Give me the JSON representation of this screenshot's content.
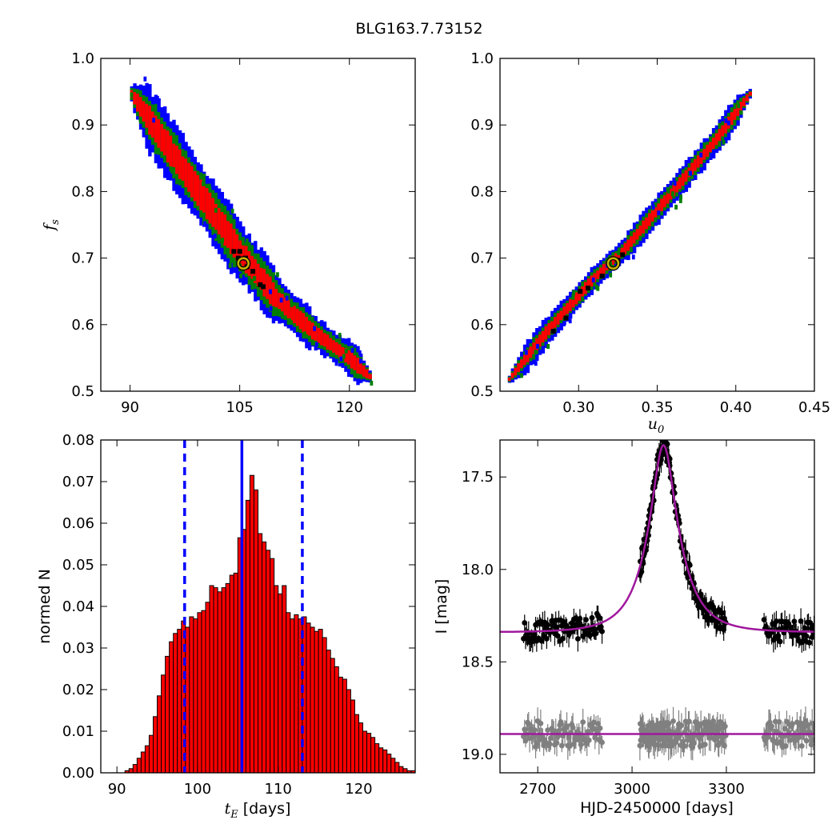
{
  "figure_title": "BLG163.7.73152",
  "chart_data": [
    {
      "type": "heatmap",
      "panel": "top-left",
      "xlim": [
        86,
        129
      ],
      "ylim": [
        0.5,
        1.0
      ],
      "xticks": [
        90,
        105,
        120
      ],
      "yticks": [
        0.5,
        0.6,
        0.7,
        0.8,
        0.9,
        1.0
      ],
      "xlabel": "",
      "ylabel": "f_s",
      "ridge": [
        [
          90,
          0.95
        ],
        [
          95,
          0.87
        ],
        [
          100,
          0.79
        ],
        [
          105,
          0.71
        ],
        [
          110,
          0.64
        ],
        [
          115,
          0.59
        ],
        [
          120,
          0.55
        ],
        [
          123,
          0.52
        ]
      ],
      "widths": {
        "blue": 3.0,
        "green": 2.1,
        "red": 1.3
      },
      "best_fit": {
        "x": 105.5,
        "y": 0.692
      },
      "black_points": [
        [
          104.2,
          0.71
        ],
        [
          105.0,
          0.71
        ],
        [
          104.8,
          0.7
        ],
        [
          105.8,
          0.7
        ],
        [
          106.0,
          0.687
        ],
        [
          106.8,
          0.68
        ],
        [
          107.8,
          0.66
        ],
        [
          108.2,
          0.657
        ]
      ],
      "colors": {
        "blue": "#0000ff",
        "green": "#007f00",
        "red": "#ff0000",
        "best_fit": "#c8b400"
      }
    },
    {
      "type": "heatmap",
      "panel": "top-right",
      "xlim": [
        0.25,
        0.45
      ],
      "ylim": [
        0.5,
        1.0
      ],
      "xticks": [
        0.3,
        0.35,
        0.4,
        0.45
      ],
      "xtick_labels": [
        "0.30",
        "0.35",
        "0.40",
        "0.45"
      ],
      "yticks": [
        0.5,
        0.6,
        0.7,
        0.8,
        0.9,
        1.0
      ],
      "xlabel": "u_0",
      "ylabel": "",
      "ridge": [
        [
          0.255,
          0.515
        ],
        [
          0.28,
          0.59
        ],
        [
          0.31,
          0.67
        ],
        [
          0.33,
          0.715
        ],
        [
          0.36,
          0.8
        ],
        [
          0.385,
          0.87
        ],
        [
          0.41,
          0.95
        ]
      ],
      "widths": {
        "blue": 0.0075,
        "green": 0.005,
        "red": 0.003
      },
      "best_fit": {
        "x": 0.322,
        "y": 0.692
      },
      "black_points": [
        [
          0.315,
          0.673
        ],
        [
          0.325,
          0.697
        ],
        [
          0.328,
          0.705
        ],
        [
          0.306,
          0.655
        ],
        [
          0.301,
          0.65
        ],
        [
          0.284,
          0.59
        ],
        [
          0.292,
          0.61
        ]
      ],
      "colors": {
        "blue": "#0000ff",
        "green": "#007f00",
        "red": "#ff0000",
        "best_fit": "#c8b400"
      }
    },
    {
      "type": "bar",
      "panel": "bottom-left",
      "xlim": [
        88,
        127
      ],
      "ylim": [
        0.0,
        0.08
      ],
      "xticks": [
        90,
        100,
        110,
        120
      ],
      "yticks": [
        0.0,
        0.01,
        0.02,
        0.03,
        0.04,
        0.05,
        0.06,
        0.07,
        0.08
      ],
      "ytick_labels": [
        "0.00",
        "0.01",
        "0.02",
        "0.03",
        "0.04",
        "0.05",
        "0.06",
        "0.07",
        "0.08"
      ],
      "xlabel": "t_E [days]",
      "ylabel": "normed N",
      "bin_start": 88.0,
      "bin_width": 0.5,
      "values": [
        0.0,
        0.0,
        0.0,
        0.0,
        0.0,
        0.0,
        0.0005,
        0.001,
        0.002,
        0.0035,
        0.005,
        0.0065,
        0.009,
        0.0135,
        0.0185,
        0.0235,
        0.028,
        0.0315,
        0.0335,
        0.0345,
        0.0365,
        0.035,
        0.0375,
        0.037,
        0.0385,
        0.039,
        0.041,
        0.045,
        0.0445,
        0.0435,
        0.0445,
        0.0455,
        0.0475,
        0.048,
        0.0565,
        0.0585,
        0.0655,
        0.0715,
        0.068,
        0.0575,
        0.0555,
        0.0535,
        0.0515,
        0.045,
        0.043,
        0.045,
        0.0385,
        0.037,
        0.038,
        0.037,
        0.0375,
        0.036,
        0.035,
        0.034,
        0.0345,
        0.0325,
        0.0295,
        0.0275,
        0.0255,
        0.023,
        0.0225,
        0.02,
        0.0175,
        0.014,
        0.012,
        0.01,
        0.0095,
        0.0085,
        0.007,
        0.006,
        0.0055,
        0.0045,
        0.0035,
        0.0025,
        0.0015,
        0.001,
        0.0005,
        0.0005
      ],
      "solid_line": 105.5,
      "dashed_lines": [
        98.4,
        113.0
      ],
      "colors": {
        "bar": "#ff0000",
        "edge": "#000000",
        "lines": "#0000ff"
      }
    },
    {
      "type": "scatter",
      "panel": "bottom-right",
      "xlim": [
        2580,
        3580
      ],
      "ylim": [
        19.1,
        17.3
      ],
      "xticks": [
        2700,
        3000,
        3300
      ],
      "yticks": [
        17.5,
        18.0,
        18.5,
        19.0
      ],
      "xlabel": "HJD-2450000 [days]",
      "ylabel": "I [mag]",
      "model": {
        "t0": 3100,
        "tE": 105.5,
        "u0": 0.322,
        "fs": 0.692,
        "I_base": 18.34,
        "residual_level": 18.89
      },
      "series": [
        {
          "role": "data",
          "color": "#000000"
        },
        {
          "role": "residuals",
          "color": "#808080"
        },
        {
          "role": "model",
          "color": "#a0189e"
        }
      ]
    }
  ]
}
